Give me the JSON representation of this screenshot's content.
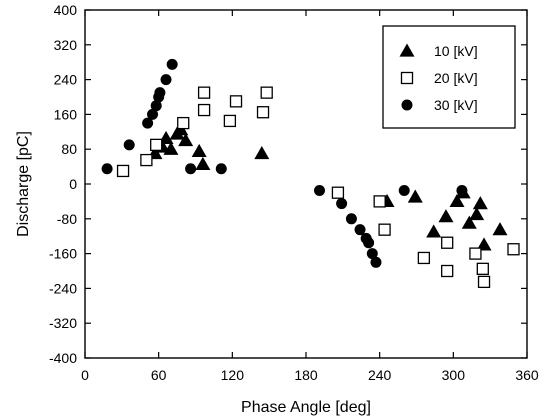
{
  "chart_data": {
    "type": "scatter",
    "xlabel": "Phase Angle [deg]",
    "ylabel": "Discharge [pC]",
    "xlim": [
      0,
      360
    ],
    "ylim": [
      -400,
      400
    ],
    "xticks": [
      0,
      60,
      120,
      180,
      240,
      300,
      360
    ],
    "yticks": [
      400,
      320,
      240,
      160,
      80,
      0,
      -80,
      -160,
      -240,
      -320,
      -400
    ],
    "grid": false,
    "legend_position": "top-right",
    "series": [
      {
        "name": "10 [kV]",
        "marker": "filled-triangle",
        "points": [
          [
            57,
            70
          ],
          [
            63,
            85
          ],
          [
            66,
            105
          ],
          [
            70,
            80
          ],
          [
            75,
            115
          ],
          [
            78,
            125
          ],
          [
            82,
            100
          ],
          [
            93,
            75
          ],
          [
            96,
            45
          ],
          [
            144,
            70
          ],
          [
            246,
            -40
          ],
          [
            269,
            -30
          ],
          [
            284,
            -110
          ],
          [
            294,
            -75
          ],
          [
            303,
            -40
          ],
          [
            308,
            -20
          ],
          [
            313,
            -90
          ],
          [
            319,
            -70
          ],
          [
            322,
            -45
          ],
          [
            325,
            -140
          ],
          [
            338,
            -105
          ]
        ]
      },
      {
        "name": "20 [kV]",
        "marker": "open-square",
        "points": [
          [
            31,
            30
          ],
          [
            50,
            55
          ],
          [
            58,
            90
          ],
          [
            80,
            140
          ],
          [
            97,
            210
          ],
          [
            97,
            170
          ],
          [
            118,
            145
          ],
          [
            123,
            190
          ],
          [
            145,
            165
          ],
          [
            148,
            210
          ],
          [
            206,
            -20
          ],
          [
            240,
            -40
          ],
          [
            244,
            -105
          ],
          [
            276,
            -170
          ],
          [
            295,
            -135
          ],
          [
            295,
            -200
          ],
          [
            318,
            -160
          ],
          [
            324,
            -195
          ],
          [
            325,
            -225
          ],
          [
            349,
            -150
          ]
        ]
      },
      {
        "name": "30 [kV]",
        "marker": "filled-circle",
        "points": [
          [
            18,
            35
          ],
          [
            36,
            90
          ],
          [
            51,
            140
          ],
          [
            55,
            160
          ],
          [
            58,
            180
          ],
          [
            60,
            200
          ],
          [
            61,
            210
          ],
          [
            66,
            240
          ],
          [
            71,
            275
          ],
          [
            86,
            35
          ],
          [
            111,
            35
          ],
          [
            191,
            -15
          ],
          [
            209,
            -45
          ],
          [
            217,
            -80
          ],
          [
            224,
            -105
          ],
          [
            229,
            -125
          ],
          [
            231,
            -135
          ],
          [
            234,
            -160
          ],
          [
            237,
            -180
          ],
          [
            260,
            -15
          ],
          [
            307,
            -15
          ]
        ]
      }
    ]
  }
}
